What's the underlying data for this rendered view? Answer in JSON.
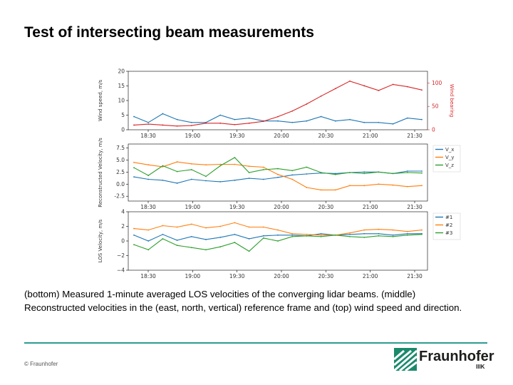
{
  "slide": {
    "title": "Test of intersecting beam measurements",
    "caption_line1": "(bottom) Measured 1-minute averaged LOS velocities of the converging lidar beams. (middle)",
    "caption_line2": "Reconstructed velocities in the (east, north, vertical) reference frame and (top) wind speed and direction.",
    "copyright": "© Fraunhofer",
    "logo_name": "Fraunhofer",
    "logo_sub": "IIIK",
    "accent_color": "#2a9d8f"
  },
  "chart_data": [
    {
      "type": "line",
      "title": "",
      "xlabel": "",
      "ylabel": "Wind speed, m/s",
      "y2label": "Wind bearing",
      "x_ticks": [
        "18:30",
        "19:00",
        "19:30",
        "20:00",
        "20:30",
        "21:00",
        "21:30"
      ],
      "ylim": [
        0,
        20
      ],
      "y_ticks": [
        0,
        5,
        10,
        15,
        20
      ],
      "y2lim": [
        0,
        125
      ],
      "y2_ticks": [
        0,
        50,
        100
      ],
      "series": [
        {
          "name": "Wind speed",
          "color": "#1f77b4",
          "axis": "left",
          "values": [
            4.5,
            2.5,
            5.5,
            3.5,
            2.5,
            2.5,
            5.0,
            3.5,
            4.0,
            3.0,
            3.0,
            2.5,
            3.0,
            4.5,
            3.0,
            3.5,
            2.5,
            2.5,
            2.0,
            4.0,
            3.5
          ]
        },
        {
          "name": "Wind bearing",
          "color": "#d62728",
          "axis": "right",
          "values": [
            10,
            12,
            10,
            8,
            9,
            14,
            14,
            11,
            14,
            18,
            28,
            40,
            55,
            72,
            88,
            104,
            94,
            84,
            97,
            92,
            85
          ]
        }
      ]
    },
    {
      "type": "line",
      "title": "",
      "xlabel": "",
      "ylabel": "Reconstructed Velocity, m/s",
      "x_ticks": [
        "18:30",
        "19:00",
        "19:30",
        "20:00",
        "20:30",
        "21:00",
        "21:30"
      ],
      "ylim": [
        -3.5,
        8.3
      ],
      "y_ticks": [
        "-2.5",
        "0.0",
        "2.5",
        "5.0",
        "7.5"
      ],
      "legend": "right",
      "series": [
        {
          "name": "V_x",
          "color": "#1f77b4",
          "values": [
            1.5,
            1.0,
            0.8,
            0.2,
            1.0,
            0.7,
            0.5,
            0.8,
            1.2,
            1.0,
            1.4,
            1.9,
            2.1,
            2.3,
            2.2,
            2.4,
            2.5,
            2.5,
            2.2,
            2.7,
            2.7
          ]
        },
        {
          "name": "V_y",
          "color": "#ff7f0e",
          "values": [
            4.5,
            4.0,
            3.6,
            4.6,
            4.2,
            4.0,
            4.1,
            4.1,
            3.7,
            3.5,
            2.0,
            1.0,
            -0.7,
            -1.2,
            -1.2,
            -0.3,
            -0.3,
            0.0,
            -0.2,
            -0.5,
            -0.3
          ]
        },
        {
          "name": "V_z",
          "color": "#2ca02c",
          "values": [
            3.4,
            1.8,
            3.8,
            2.6,
            3.0,
            1.6,
            3.8,
            5.5,
            2.4,
            3.0,
            3.2,
            2.8,
            3.5,
            2.4,
            2.0,
            2.4,
            2.2,
            2.5,
            2.2,
            2.4,
            2.3
          ]
        }
      ]
    },
    {
      "type": "line",
      "title": "",
      "xlabel": "",
      "ylabel": "LOS Velocity, m/s",
      "x_ticks": [
        "18:30",
        "19:00",
        "19:30",
        "20:00",
        "20:30",
        "21:00",
        "21:30"
      ],
      "ylim": [
        -4,
        4
      ],
      "y_ticks": [
        "−4",
        "−2",
        "0",
        "2",
        "4"
      ],
      "legend": "right",
      "series": [
        {
          "name": "#1",
          "color": "#1f77b4",
          "values": [
            0.8,
            0.0,
            0.9,
            0.1,
            0.6,
            0.2,
            0.5,
            0.9,
            0.3,
            0.7,
            0.8,
            0.8,
            0.7,
            1.0,
            0.8,
            0.9,
            1.0,
            1.0,
            0.8,
            1.0,
            1.0
          ]
        },
        {
          "name": "#2",
          "color": "#ff7f0e",
          "values": [
            1.7,
            1.5,
            2.1,
            1.9,
            2.3,
            1.8,
            2.0,
            2.5,
            1.9,
            1.9,
            1.5,
            1.0,
            0.9,
            0.8,
            0.8,
            1.1,
            1.5,
            1.6,
            1.5,
            1.3,
            1.5
          ]
        },
        {
          "name": "#3",
          "color": "#2ca02c",
          "values": [
            -0.5,
            -1.2,
            0.3,
            -0.6,
            -0.9,
            -1.2,
            -0.8,
            -0.2,
            -1.4,
            0.4,
            0.0,
            0.6,
            0.7,
            0.6,
            0.8,
            0.6,
            0.5,
            0.7,
            0.6,
            0.8,
            0.9
          ]
        }
      ]
    }
  ]
}
